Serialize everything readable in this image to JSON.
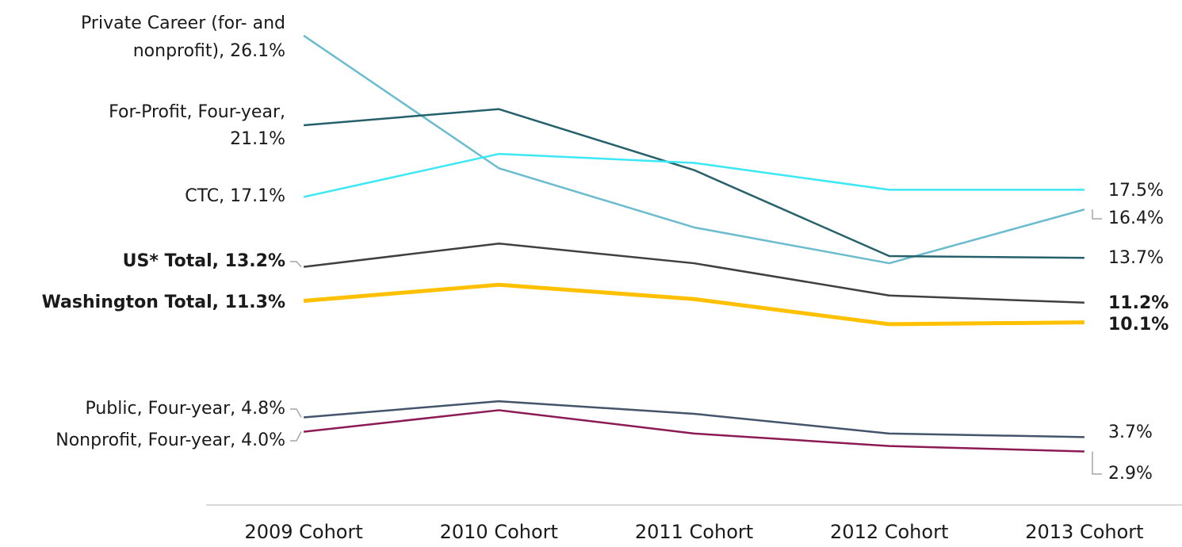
{
  "chart_data": {
    "type": "line",
    "categories": [
      "2009 Cohort",
      "2010 Cohort",
      "2011 Cohort",
      "2012 Cohort",
      "2013 Cohort"
    ],
    "ylim": [
      0,
      28
    ],
    "series": [
      {
        "name": "Private Career (for- and nonprofit)",
        "color": "#6bbccf",
        "values": [
          26.1,
          18.7,
          15.4,
          13.4,
          16.4
        ],
        "start_label": [
          "Private Career (for- and",
          "nonprofit), 26.1%"
        ],
        "end_label": "16.4%"
      },
      {
        "name": "For-Profit, Four-year",
        "color": "#25606b",
        "values": [
          21.1,
          22.0,
          18.6,
          13.8,
          13.7
        ],
        "start_label": [
          "For-Profit, Four-year,",
          "21.1%"
        ],
        "end_label": "13.7%"
      },
      {
        "name": "CTC",
        "color": "#3de8f5",
        "values": [
          17.1,
          19.5,
          19.0,
          17.5,
          17.5
        ],
        "start_label": [
          "CTC, 17.1%"
        ],
        "end_label": "17.5%"
      },
      {
        "name": "US* Total",
        "color": "#404040",
        "values": [
          13.2,
          14.5,
          13.4,
          11.6,
          11.2
        ],
        "start_label": [
          "US* Total, 13.2%"
        ],
        "end_label": "11.2%",
        "bold": true
      },
      {
        "name": "Washington Total",
        "color": "#ffc000",
        "values": [
          11.3,
          12.2,
          11.4,
          10.0,
          10.1
        ],
        "start_label": [
          "Washington Total, 11.3%"
        ],
        "end_label": "10.1%",
        "bold": true,
        "thick": true
      },
      {
        "name": "Public, Four-year",
        "color": "#44546a",
        "values": [
          4.8,
          5.7,
          5.0,
          3.9,
          3.7
        ],
        "start_label": [
          "Public, Four-year, 4.8%"
        ],
        "end_label": "3.7%"
      },
      {
        "name": "Nonprofit, Four-year",
        "color": "#8b1a55",
        "values": [
          4.0,
          5.2,
          3.9,
          3.2,
          2.9
        ],
        "start_label": [
          "Nonprofit, Four-year, 4.0%"
        ],
        "end_label": "2.9%"
      }
    ]
  }
}
